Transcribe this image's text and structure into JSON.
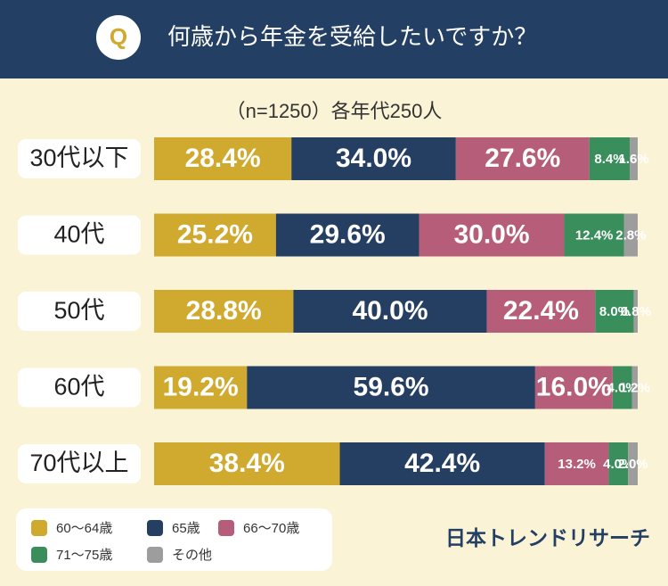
{
  "header": {
    "badge": "Q",
    "title": "何歳から年金を受給したいですか？"
  },
  "brand": "日本トレンドリサーチ",
  "chart_data": {
    "type": "bar",
    "orientation": "horizontal",
    "stacked": true,
    "subtitle": "（n=1250）各年代250人",
    "categories": [
      "30代以下",
      "40代",
      "50代",
      "60代",
      "70代以上"
    ],
    "xlim": [
      0,
      100
    ],
    "series": [
      {
        "name": "60〜64歳",
        "color": "#d0aa2f",
        "values": [
          28.4,
          25.2,
          28.8,
          19.2,
          38.4
        ],
        "value_labels": [
          "28.4%",
          "25.2%",
          "28.8%",
          "19.2%",
          "38.4%"
        ]
      },
      {
        "name": "65歳",
        "color": "#253f63",
        "values": [
          34.0,
          29.6,
          40.0,
          59.6,
          42.4
        ],
        "value_labels": [
          "34.0%",
          "29.6%",
          "40.0%",
          "59.6%",
          "42.4%"
        ]
      },
      {
        "name": "66〜70歳",
        "color": "#b65d79",
        "values": [
          27.6,
          30.0,
          22.4,
          16.0,
          13.2
        ],
        "value_labels": [
          "27.6%",
          "30.0%",
          "22.4%",
          "16.0%",
          "13.2%"
        ]
      },
      {
        "name": "71〜75歳",
        "color": "#3a8e5c",
        "values": [
          8.4,
          12.4,
          8.0,
          4.0,
          4.0
        ],
        "value_labels": [
          "8.4%",
          "12.4%",
          "8.0%",
          "4.0%",
          "4.0%"
        ]
      },
      {
        "name": "その他",
        "color": "#9d9d9d",
        "values": [
          1.6,
          2.8,
          0.8,
          1.2,
          2.0
        ],
        "value_labels": [
          "1.6%",
          "2.8%",
          "0.8%",
          "1.2%",
          "2.0%"
        ]
      }
    ]
  }
}
